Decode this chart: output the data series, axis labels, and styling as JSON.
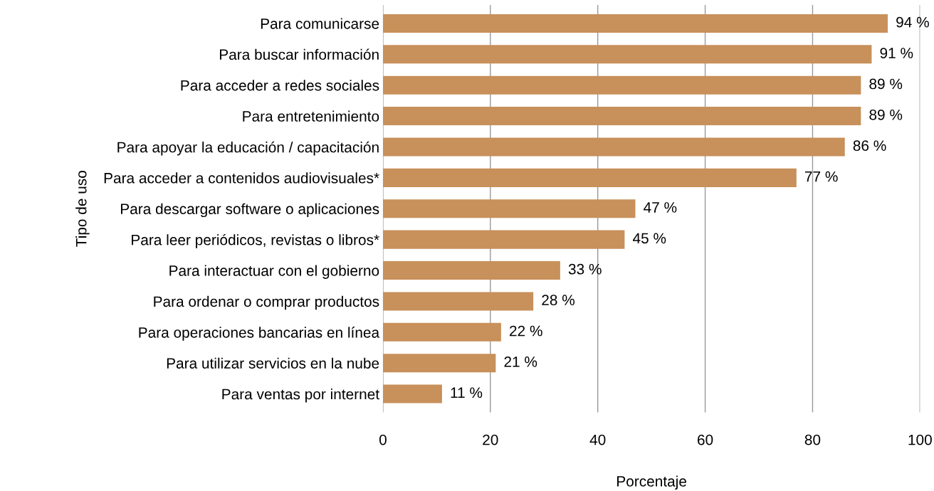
{
  "chart_data": {
    "type": "bar",
    "orientation": "horizontal",
    "xlabel": "Porcentaje",
    "ylabel": "Tipo de uso",
    "categories": [
      "Para comunicarse",
      "Para buscar información",
      "Para acceder a redes sociales",
      "Para entretenimiento",
      "Para apoyar la educación / capacitación",
      "Para acceder a contenidos audiovisuales*",
      "Para descargar software o aplicaciones",
      "Para leer periódicos, revistas o libros*",
      "Para interactuar con el gobierno",
      "Para ordenar o comprar productos",
      "Para operaciones bancarias en línea",
      "Para utilizar servicios en la nube",
      "Para ventas por internet"
    ],
    "values": [
      94,
      91,
      89,
      89,
      86,
      77,
      47,
      45,
      33,
      28,
      22,
      21,
      11
    ],
    "value_labels": [
      "94 %",
      "91 %",
      "89 %",
      "89 %",
      "86 %",
      "77 %",
      "47 %",
      "45 %",
      "33 %",
      "28 %",
      "22 %",
      "21 %",
      "11 %"
    ],
    "color": "#c8905a",
    "xlim": [
      0,
      100
    ],
    "xticks": [
      0,
      20,
      40,
      60,
      80,
      100
    ],
    "grid": "x",
    "legend": false
  }
}
